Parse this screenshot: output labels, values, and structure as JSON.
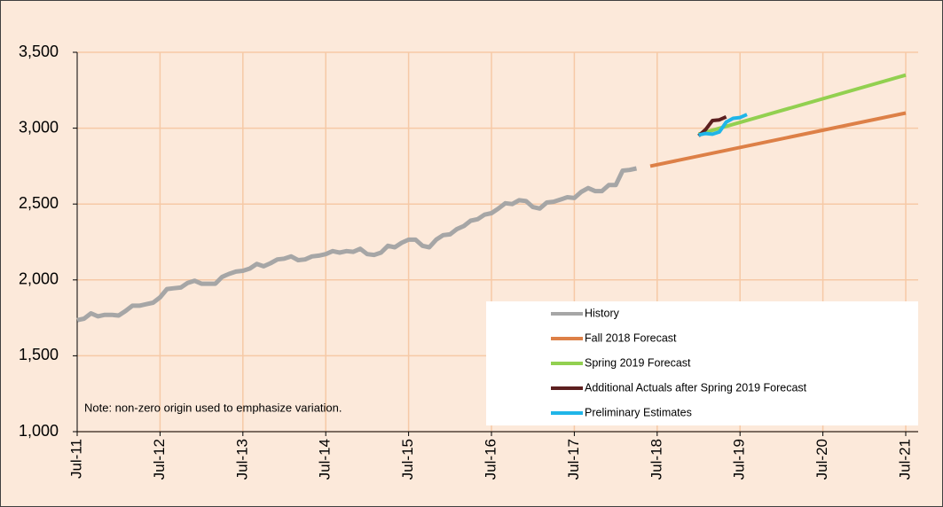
{
  "chart_data": {
    "type": "line",
    "annotation": "Note: non-zero origin used to emphasize variation.",
    "xlim": [
      0,
      120
    ],
    "xticks": [
      {
        "value": 0,
        "label": "Jul-11"
      },
      {
        "value": 12,
        "label": "Jul-12"
      },
      {
        "value": 24,
        "label": "Jul-13"
      },
      {
        "value": 36,
        "label": "Jul-14"
      },
      {
        "value": 48,
        "label": "Jul-15"
      },
      {
        "value": 60,
        "label": "Jul-16"
      },
      {
        "value": 72,
        "label": "Jul-17"
      },
      {
        "value": 84,
        "label": "Jul-18"
      },
      {
        "value": 96,
        "label": "Jul-19"
      },
      {
        "value": 108,
        "label": "Jul-20"
      },
      {
        "value": 120,
        "label": "Jul-21"
      }
    ],
    "ylim": [
      1000,
      3500
    ],
    "yticks": [
      {
        "value": 1000,
        "label": "1,000"
      },
      {
        "value": 1500,
        "label": "1,500"
      },
      {
        "value": 2000,
        "label": "2,000"
      },
      {
        "value": 2500,
        "label": "2,500"
      },
      {
        "value": 3000,
        "label": "3,000"
      },
      {
        "value": 3500,
        "label": "3,500"
      }
    ],
    "grid": true,
    "legend": "lower right",
    "series": [
      {
        "name": "History",
        "color": "#a6a6a6",
        "x": [
          0,
          1,
          2,
          3,
          4,
          5,
          6,
          7,
          8,
          9,
          10,
          11,
          12,
          13,
          14,
          15,
          16,
          17,
          18,
          19,
          20,
          21,
          22,
          23,
          24,
          25,
          26,
          27,
          28,
          29,
          30,
          31,
          32,
          33,
          34,
          35,
          36,
          37,
          38,
          39,
          40,
          41,
          42,
          43,
          44,
          45,
          46,
          47,
          48,
          49,
          50,
          51,
          52,
          53,
          54,
          55,
          56,
          57,
          58,
          59,
          60,
          61,
          62,
          63,
          64,
          65,
          66,
          67,
          68,
          69,
          70,
          71,
          72,
          73,
          74,
          75,
          76,
          77,
          78,
          79,
          80,
          81
        ],
        "values": [
          1735,
          1745,
          1780,
          1760,
          1770,
          1770,
          1765,
          1795,
          1830,
          1830,
          1840,
          1850,
          1885,
          1940,
          1945,
          1950,
          1980,
          1995,
          1975,
          1975,
          1975,
          2020,
          2040,
          2055,
          2060,
          2075,
          2105,
          2090,
          2110,
          2135,
          2140,
          2155,
          2130,
          2135,
          2155,
          2160,
          2170,
          2190,
          2180,
          2190,
          2185,
          2205,
          2170,
          2165,
          2180,
          2225,
          2215,
          2245,
          2265,
          2265,
          2225,
          2215,
          2265,
          2295,
          2300,
          2335,
          2355,
          2390,
          2400,
          2430,
          2440,
          2470,
          2505,
          2500,
          2525,
          2520,
          2480,
          2470,
          2510,
          2515,
          2530,
          2545,
          2540,
          2580,
          2605,
          2585,
          2585,
          2625,
          2625,
          2720,
          2725,
          2735
        ]
      },
      {
        "name": "Fall 2018 Forecast",
        "color": "#dd8047",
        "x": [
          83,
          120
        ],
        "values": [
          2750,
          3100
        ]
      },
      {
        "name": "Spring 2019 Forecast",
        "color": "#92d050",
        "x": [
          90,
          120
        ],
        "values": [
          2960,
          3350
        ]
      },
      {
        "name": "Additional Actuals after Spring 2019 Forecast",
        "color": "#5c1f1f",
        "x": [
          90,
          91,
          92,
          93,
          94
        ],
        "values": [
          2950,
          2990,
          3050,
          3055,
          3075
        ]
      },
      {
        "name": "Preliminary Estimates",
        "color": "#1fb5e8",
        "x": [
          90,
          91,
          92,
          93,
          94,
          95,
          96,
          97
        ],
        "values": [
          2955,
          2965,
          2960,
          2975,
          3040,
          3065,
          3070,
          3090
        ]
      }
    ]
  }
}
